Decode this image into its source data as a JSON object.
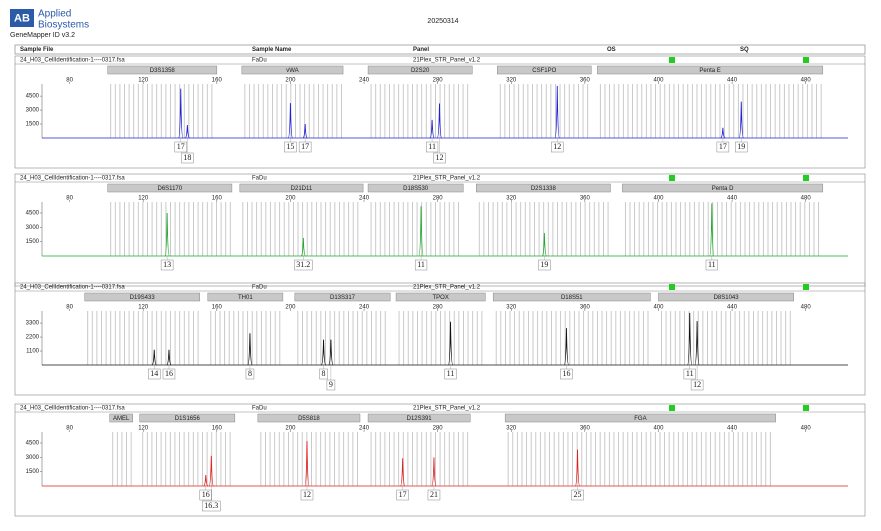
{
  "header": {
    "logo": "AB",
    "brand_line1": "Applied",
    "brand_line2": "Biosystems",
    "version": "GeneMapper ID v3.2",
    "date": "20250314"
  },
  "columns": [
    "Sample File",
    "Sample Name",
    "Panel",
    "OS",
    "SQ"
  ],
  "chart_data": [
    {
      "type": "peaks",
      "sample_file": "24_H03_CellIdentification-1----0317.fsa",
      "sample_name": "FaDu",
      "panel": "21Plex_STR_Panel_v1.2",
      "color": "#1f1fd6",
      "xlim": [
        65,
        503
      ],
      "xticks": [
        80,
        120,
        160,
        200,
        240,
        280,
        320,
        360,
        400,
        440,
        480
      ],
      "ylim": [
        0,
        5800
      ],
      "yticks": [
        1500,
        3000,
        4500
      ],
      "markers": [
        {
          "name": "D3S1358",
          "range": [
            100.7,
            160
          ]
        },
        {
          "name": "vWA",
          "range": [
            173.6,
            228.6
          ]
        },
        {
          "name": "D2S20",
          "range": [
            242.2,
            298.8
          ]
        },
        {
          "name": "CSF1PO",
          "range": [
            312.4,
            363.5
          ]
        },
        {
          "name": "Penta E",
          "range": [
            366.8,
            489.3
          ]
        }
      ],
      "peaks": {
        "x": [
          140.4,
          144,
          200,
          208,
          277,
          281,
          345,
          435,
          445
        ],
        "values": [
          5300,
          1400,
          3750,
          1500,
          1950,
          3700,
          5600,
          1100,
          3900
        ],
        "labels": [
          "17",
          "18",
          "15",
          "17",
          "11",
          "12",
          "12",
          "17",
          "19"
        ]
      }
    },
    {
      "type": "peaks",
      "sample_file": "24_H03_CellIdentification-1----0317.fsa",
      "sample_name": "FaDu",
      "panel": "21Plex_STR_Panel_v1.2",
      "color": "#1fa82a",
      "xlim": [
        65,
        503
      ],
      "xticks": [
        80,
        120,
        160,
        200,
        240,
        280,
        320,
        360,
        400,
        440,
        480
      ],
      "ylim": [
        0,
        5650
      ],
      "yticks": [
        1500,
        3000,
        4500
      ],
      "markers": [
        {
          "name": "D6S1170",
          "range": [
            100.7,
            168.2
          ]
        },
        {
          "name": "D21D11",
          "range": [
            172.5,
            239.5
          ]
        },
        {
          "name": "D18S530",
          "range": [
            242.2,
            293.9
          ]
        },
        {
          "name": "D2S1338",
          "range": [
            301,
            373.9
          ]
        },
        {
          "name": "Penta D",
          "range": [
            380.4,
            489.3
          ]
        }
      ],
      "peaks": {
        "x": [
          133,
          207,
          271,
          338,
          429
        ],
        "values": [
          4500,
          1900,
          5200,
          2400,
          5500
        ],
        "labels": [
          "13",
          "31.2",
          "11",
          "19",
          "11"
        ]
      }
    },
    {
      "type": "peaks",
      "sample_file": "24_H03_CellIdentification-1----0317.fsa",
      "sample_name": "FaDu",
      "panel": "21Plex_STR_Panel_v1.2",
      "color": "#111111",
      "xlim": [
        65,
        503
      ],
      "xticks": [
        80,
        120,
        160,
        200,
        240,
        280,
        320,
        360,
        400,
        440,
        480
      ],
      "ylim": [
        0,
        4250
      ],
      "yticks": [
        1100,
        2200,
        3300
      ],
      "markers": [
        {
          "name": "D19S433",
          "range": [
            88.2,
            150.7
          ]
        },
        {
          "name": "TH01",
          "range": [
            155.1,
            195.9
          ]
        },
        {
          "name": "D13S317",
          "range": [
            202.4,
            254.2
          ]
        },
        {
          "name": "TPOX",
          "range": [
            257.4,
            305.9
          ]
        },
        {
          "name": "D18S51",
          "range": [
            310.2,
            395.6
          ]
        },
        {
          "name": "D8S1043",
          "range": [
            400,
            473.5
          ]
        }
      ],
      "peaks": {
        "x": [
          126,
          134,
          178,
          218,
          222,
          287,
          350,
          417,
          421
        ],
        "values": [
          1200,
          1200,
          2500,
          2000,
          2000,
          3400,
          2900,
          4100,
          3450
        ],
        "labels": [
          "14",
          "16",
          "8",
          "8",
          "9",
          "11",
          "16",
          "11",
          "12"
        ]
      }
    },
    {
      "type": "peaks",
      "sample_file": "24_H03_CellIdentification-1----0317.fsa",
      "sample_name": "FaDu",
      "panel": "21Plex_STR_Panel_v1.2",
      "color": "#e0201e",
      "xlim": [
        65,
        503
      ],
      "xticks": [
        80,
        120,
        160,
        200,
        240,
        280,
        320,
        360,
        400,
        440,
        480
      ],
      "ylim": [
        0,
        5650
      ],
      "yticks": [
        1500,
        3000,
        4500
      ],
      "markers": [
        {
          "name": "AMEL",
          "range": [
            101.8,
            114.3
          ]
        },
        {
          "name": "D1S1656",
          "range": [
            118.1,
            169.8
          ]
        },
        {
          "name": "D5S818",
          "range": [
            182.3,
            237.8
          ]
        },
        {
          "name": "D12S391",
          "range": [
            242.2,
            297.7
          ]
        },
        {
          "name": "FGA",
          "range": [
            316.7,
            463.7
          ]
        }
      ],
      "peaks": {
        "x": [
          154,
          157,
          209,
          261,
          278,
          356
        ],
        "values": [
          1150,
          3150,
          4700,
          2900,
          3000,
          3800
        ],
        "labels": [
          "16",
          "16.3",
          "12",
          "17",
          "21",
          "25"
        ]
      }
    }
  ]
}
